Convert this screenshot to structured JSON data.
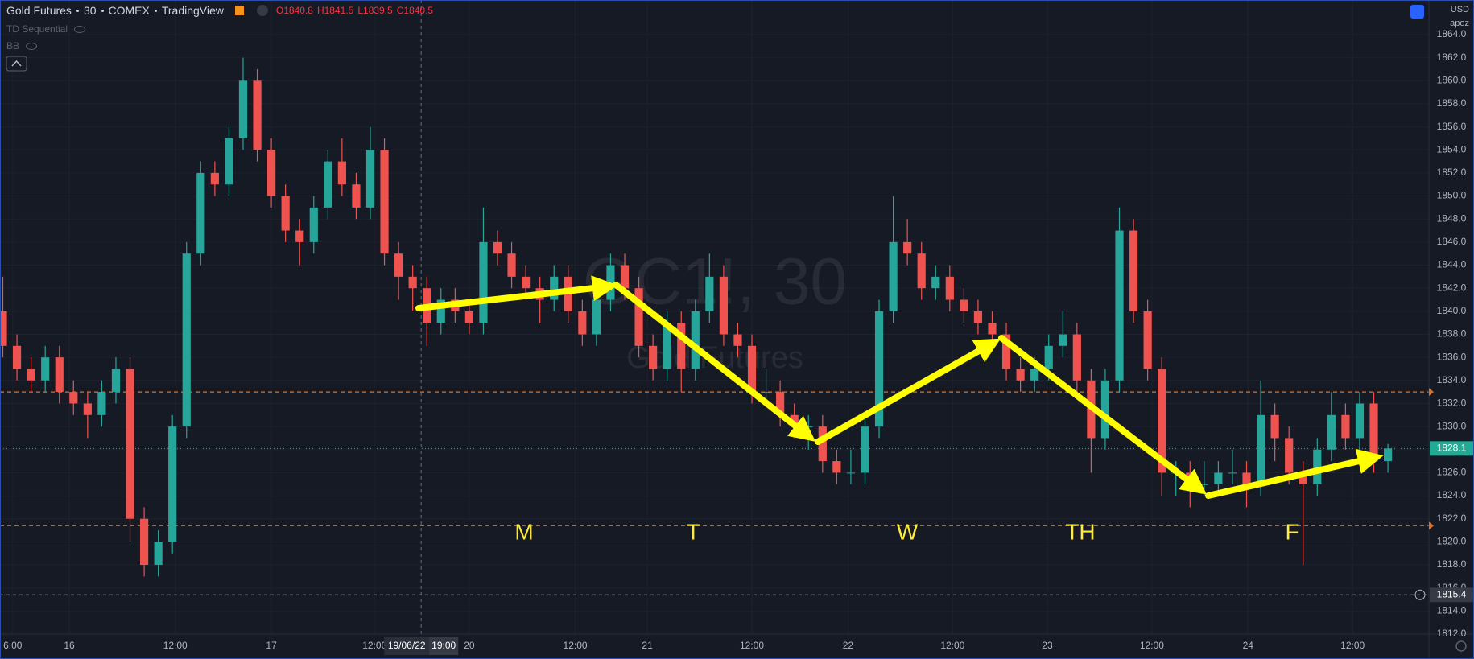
{
  "header": {
    "symbol": "Gold Futures",
    "interval": "30",
    "exchange": "COMEX",
    "source": "TradingView",
    "ohlc": [
      {
        "label": "O",
        "value": 1840.8
      },
      {
        "label": "H",
        "value": 1841.5
      },
      {
        "label": "L",
        "value": 1839.5
      },
      {
        "label": "C",
        "value": 1840.5
      }
    ],
    "indicators": [
      "TD Sequential",
      "BB"
    ],
    "currency": "USD",
    "scale_mode": "apoz"
  },
  "chart_data": {
    "type": "candlestick",
    "watermark": {
      "symbol": "GC1!, 30",
      "name": "Gold Futures"
    },
    "annotations": [
      "M",
      "T",
      "W",
      "TH",
      "F"
    ],
    "up_color": "#26a69a",
    "down_color": "#ef5350",
    "grid": true,
    "xlim": [
      -0.2,
      100.9
    ],
    "ylim": [
      1812,
      1867
    ],
    "xticks": [
      {
        "value": 0.7,
        "label": "6:00"
      },
      {
        "value": 4.7,
        "label": "16"
      },
      {
        "value": 12.2,
        "label": "12:00"
      },
      {
        "value": 19,
        "label": "17"
      },
      {
        "value": 26.3,
        "label": "12:00"
      },
      {
        "value": 33,
        "label": "20"
      },
      {
        "value": 40.5,
        "label": "12:00"
      },
      {
        "value": 45.6,
        "label": "21"
      },
      {
        "value": 53,
        "label": "12:00"
      },
      {
        "value": 59.8,
        "label": "22"
      },
      {
        "value": 67.2,
        "label": "12:00"
      },
      {
        "value": 73.9,
        "label": "23"
      },
      {
        "value": 81.3,
        "label": "12:00"
      },
      {
        "value": 88.1,
        "label": "24"
      },
      {
        "value": 95.5,
        "label": "12:00"
      }
    ],
    "yticks": [
      {
        "value": 1812,
        "label": "1812.0"
      },
      {
        "value": 1814,
        "label": "1814.0"
      },
      {
        "value": 1816,
        "label": "1816.0"
      },
      {
        "value": 1818,
        "label": "1818.0"
      },
      {
        "value": 1820,
        "label": "1820.0"
      },
      {
        "value": 1822,
        "label": "1822.0"
      },
      {
        "value": 1824,
        "label": "1824.0"
      },
      {
        "value": 1826,
        "label": "1826.0"
      },
      {
        "value": 1828,
        "label": "1828.0"
      },
      {
        "value": 1830,
        "label": "1830.0"
      },
      {
        "value": 1832,
        "label": "1832.0"
      },
      {
        "value": 1834,
        "label": "1834.0"
      },
      {
        "value": 1836,
        "label": "1836.0"
      },
      {
        "value": 1838,
        "label": "1838.0"
      },
      {
        "value": 1840,
        "label": "1840.0"
      },
      {
        "value": 1842,
        "label": "1842.0"
      },
      {
        "value": 1844,
        "label": "1844.0"
      },
      {
        "value": 1846,
        "label": "1846.0"
      },
      {
        "value": 1848,
        "label": "1848.0"
      },
      {
        "value": 1850,
        "label": "1850.0"
      },
      {
        "value": 1852,
        "label": "1852.0"
      },
      {
        "value": 1854,
        "label": "1854.0"
      },
      {
        "value": 1856,
        "label": "1856.0"
      },
      {
        "value": 1858,
        "label": "1858.0"
      },
      {
        "value": 1860,
        "label": "1860.0"
      },
      {
        "value": 1862,
        "label": "1862.0"
      },
      {
        "value": 1864,
        "label": "1864.0"
      }
    ],
    "hlines": [
      1833,
      1821.4
    ],
    "hline_color": "#e0701f",
    "last_price": 1828.1,
    "last_color": "#22ab94",
    "crosshair": {
      "x": 29.6,
      "date": "19/06/22",
      "time": "19:00",
      "price": 1815.4
    },
    "candles": {
      "open": [
        1840,
        1837,
        1835,
        1834,
        1836,
        1833,
        1832,
        1831,
        1833,
        1835,
        1822,
        1818,
        1820,
        1830,
        1845,
        1852,
        1851,
        1855,
        1860,
        1854,
        1850,
        1847,
        1846,
        1849,
        1853,
        1851,
        1849,
        1854,
        1845,
        1843,
        1842,
        1839,
        1841,
        1840,
        1839,
        1846,
        1845,
        1843,
        1842,
        1841,
        1843,
        1840,
        1838,
        1841,
        1844,
        1842,
        1837,
        1835,
        1839,
        1835,
        1840,
        1843,
        1838,
        1837,
        1833,
        1833,
        1831,
        1830,
        1830,
        1827,
        1826,
        1826,
        1830,
        1840,
        1846,
        1845,
        1842,
        1843,
        1841,
        1840,
        1839,
        1838,
        1835,
        1834,
        1835,
        1837,
        1838,
        1834,
        1829,
        1834,
        1847,
        1840,
        1835,
        1826,
        1826,
        1825,
        1825,
        1826,
        1826,
        1825,
        1831,
        1829,
        1826,
        1825,
        1828,
        1831,
        1829,
        1832,
        1827
      ],
      "high": [
        1843,
        1838,
        1836,
        1837,
        1837,
        1834,
        1833,
        1834,
        1836,
        1836,
        1823,
        1821,
        1831,
        1846,
        1853,
        1853,
        1856,
        1862,
        1861,
        1855,
        1851,
        1848,
        1850,
        1854,
        1855,
        1852,
        1856,
        1855,
        1846,
        1844,
        1843,
        1842,
        1842,
        1841,
        1849,
        1847,
        1846,
        1844,
        1843,
        1844,
        1844,
        1841,
        1842,
        1845,
        1845,
        1843,
        1838,
        1840,
        1840,
        1841,
        1845,
        1844,
        1839,
        1838,
        1835,
        1834,
        1832,
        1831,
        1831,
        1828,
        1828,
        1831,
        1841,
        1850,
        1848,
        1846,
        1844,
        1844,
        1842,
        1841,
        1840,
        1839,
        1836,
        1836,
        1838,
        1840,
        1839,
        1835,
        1835,
        1849,
        1848,
        1841,
        1836,
        1827,
        1827,
        1827,
        1827,
        1828,
        1827,
        1834,
        1832,
        1830,
        1827,
        1829,
        1833,
        1832,
        1833,
        1833,
        1828.5
      ],
      "low": [
        1836,
        1834,
        1833,
        1833,
        1832,
        1831,
        1829,
        1830,
        1832,
        1820,
        1817,
        1817,
        1819,
        1829,
        1844,
        1850,
        1850,
        1854,
        1853,
        1849,
        1846,
        1844,
        1845,
        1848,
        1850,
        1848,
        1848,
        1844,
        1841,
        1840,
        1837,
        1838,
        1839,
        1838,
        1838,
        1844,
        1842,
        1841,
        1839,
        1840,
        1839,
        1837,
        1837,
        1840,
        1841,
        1836,
        1834,
        1834,
        1833,
        1834,
        1839,
        1837,
        1836,
        1832,
        1832,
        1830,
        1829,
        1828,
        1826,
        1825,
        1825,
        1825,
        1829,
        1839,
        1844,
        1841,
        1841,
        1840,
        1839,
        1838,
        1837,
        1834,
        1833,
        1833,
        1834,
        1836,
        1833,
        1826,
        1828,
        1833,
        1839,
        1834,
        1824,
        1824,
        1823,
        1824,
        1824,
        1825,
        1823,
        1824,
        1827,
        1825,
        1818,
        1824,
        1827,
        1828,
        1828,
        1826,
        1826
      ],
      "close": [
        1837,
        1835,
        1834,
        1836,
        1833,
        1832,
        1831,
        1833,
        1835,
        1822,
        1818,
        1820,
        1830,
        1845,
        1852,
        1851,
        1855,
        1860,
        1854,
        1850,
        1847,
        1846,
        1849,
        1853,
        1851,
        1849,
        1854,
        1845,
        1843,
        1842,
        1839,
        1841,
        1840,
        1839,
        1846,
        1845,
        1843,
        1842,
        1841,
        1843,
        1840,
        1838,
        1841,
        1844,
        1842,
        1837,
        1835,
        1839,
        1835,
        1840,
        1843,
        1838,
        1837,
        1833,
        1833,
        1831,
        1830,
        1830,
        1827,
        1826,
        1826,
        1830,
        1840,
        1846,
        1845,
        1842,
        1843,
        1841,
        1840,
        1839,
        1838,
        1835,
        1834,
        1835,
        1837,
        1838,
        1834,
        1829,
        1834,
        1847,
        1840,
        1835,
        1826,
        1826,
        1825,
        1825,
        1826,
        1826,
        1825,
        1831,
        1829,
        1826,
        1825,
        1828,
        1831,
        1829,
        1832,
        1827,
        1828.1
      ]
    }
  }
}
